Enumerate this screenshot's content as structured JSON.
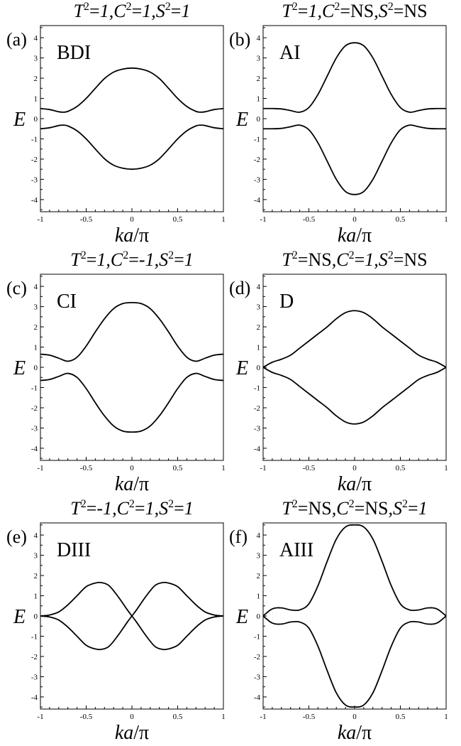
{
  "chart_data": [
    {
      "panel": "(a)",
      "class_label": "BDI",
      "title": {
        "T": "1",
        "C": "1",
        "S": "1"
      },
      "type": "line",
      "xlabel_italic": "ka",
      "xlabel_rest": "/π",
      "ylabel": "E",
      "xlim": [
        -1,
        1
      ],
      "ylim": [
        -4.6,
        4.6
      ],
      "xticks": [
        "-1",
        "-0.5",
        "0",
        "0.5",
        "1"
      ],
      "yticks": [
        "-4",
        "-3",
        "-2",
        "-1",
        "0",
        "1",
        "2",
        "3",
        "4"
      ],
      "x": [
        -1,
        -0.9,
        -0.8,
        -0.75,
        -0.7,
        -0.6,
        -0.5,
        -0.4,
        -0.3,
        -0.2,
        -0.1,
        0,
        0.1,
        0.2,
        0.3,
        0.4,
        0.5,
        0.6,
        0.7,
        0.75,
        0.8,
        0.9,
        1
      ],
      "series": [
        {
          "values": [
            0.5,
            0.45,
            0.34,
            0.32,
            0.36,
            0.6,
            1.0,
            1.5,
            1.98,
            2.3,
            2.45,
            2.5,
            2.45,
            2.3,
            1.98,
            1.5,
            1.0,
            0.6,
            0.36,
            0.32,
            0.34,
            0.45,
            0.5
          ]
        },
        {
          "values": [
            -0.5,
            -0.45,
            -0.34,
            -0.32,
            -0.36,
            -0.6,
            -1.0,
            -1.5,
            -1.98,
            -2.3,
            -2.45,
            -2.5,
            -2.45,
            -2.3,
            -1.98,
            -1.5,
            -1.0,
            -0.6,
            -0.36,
            -0.32,
            -0.34,
            -0.45,
            -0.5
          ]
        }
      ]
    },
    {
      "panel": "(b)",
      "class_label": "AI",
      "title": {
        "T": "1",
        "C": "NS",
        "S": "NS"
      },
      "type": "line",
      "xlabel_italic": "ka",
      "xlabel_rest": "/π",
      "ylabel": "E",
      "xlim": [
        -1,
        1
      ],
      "ylim": [
        -4.6,
        4.6
      ],
      "xticks": [
        "-1",
        "-0.5",
        "0",
        "0.5",
        "1"
      ],
      "yticks": [
        "-4",
        "-3",
        "-2",
        "-1",
        "0",
        "1",
        "2",
        "3",
        "4"
      ],
      "x": [
        -1,
        -0.9,
        -0.8,
        -0.7,
        -0.6,
        -0.5,
        -0.4,
        -0.3,
        -0.2,
        -0.1,
        0,
        0.1,
        0.2,
        0.3,
        0.4,
        0.5,
        0.6,
        0.7,
        0.8,
        0.9,
        1
      ],
      "series": [
        {
          "values": [
            0.5,
            0.5,
            0.48,
            0.4,
            0.32,
            0.55,
            1.2,
            2.1,
            3.0,
            3.6,
            3.75,
            3.6,
            3.0,
            2.1,
            1.2,
            0.55,
            0.32,
            0.4,
            0.48,
            0.5,
            0.5
          ]
        },
        {
          "values": [
            -0.5,
            -0.5,
            -0.48,
            -0.4,
            -0.32,
            -0.55,
            -1.2,
            -2.1,
            -3.0,
            -3.6,
            -3.75,
            -3.6,
            -3.0,
            -2.1,
            -1.2,
            -0.55,
            -0.32,
            -0.4,
            -0.48,
            -0.5,
            -0.5
          ]
        }
      ]
    },
    {
      "panel": "(c)",
      "class_label": "CI",
      "title": {
        "T": "1",
        "C": "-1",
        "S": "1"
      },
      "type": "line",
      "xlabel_italic": "ka",
      "xlabel_rest": "/π",
      "ylabel": "E",
      "xlim": [
        -1,
        1
      ],
      "ylim": [
        -4.6,
        4.6
      ],
      "xticks": [
        "-1",
        "-0.5",
        "0",
        "0.5",
        "1"
      ],
      "yticks": [
        "-4",
        "-3",
        "-2",
        "-1",
        "0",
        "1",
        "2",
        "3",
        "4"
      ],
      "x": [
        -1,
        -0.9,
        -0.8,
        -0.7,
        -0.6,
        -0.5,
        -0.4,
        -0.3,
        -0.2,
        -0.1,
        0,
        0.1,
        0.2,
        0.3,
        0.4,
        0.5,
        0.6,
        0.7,
        0.8,
        0.9,
        1
      ],
      "series": [
        {
          "values": [
            0.65,
            0.6,
            0.45,
            0.3,
            0.5,
            1.05,
            1.75,
            2.4,
            2.9,
            3.15,
            3.2,
            3.15,
            2.9,
            2.4,
            1.75,
            1.05,
            0.5,
            0.3,
            0.45,
            0.6,
            0.65
          ]
        },
        {
          "values": [
            -0.65,
            -0.6,
            -0.45,
            -0.3,
            -0.5,
            -1.05,
            -1.75,
            -2.4,
            -2.9,
            -3.15,
            -3.2,
            -3.15,
            -2.9,
            -2.4,
            -1.75,
            -1.05,
            -0.5,
            -0.3,
            -0.45,
            -0.6,
            -0.65
          ]
        }
      ]
    },
    {
      "panel": "(d)",
      "class_label": "D",
      "title": {
        "T": "NS",
        "C": "1",
        "S": "NS"
      },
      "type": "line",
      "xlabel_italic": "ka",
      "xlabel_rest": "/π",
      "ylabel": "E",
      "xlim": [
        -1,
        1
      ],
      "ylim": [
        -4.6,
        4.6
      ],
      "xticks": [
        "-1",
        "-0.5",
        "0",
        "0.5",
        "1"
      ],
      "yticks": [
        "-4",
        "-3",
        "-2",
        "-1",
        "0",
        "1",
        "2",
        "3",
        "4"
      ],
      "x": [
        -1,
        -0.9,
        -0.8,
        -0.7,
        -0.6,
        -0.5,
        -0.4,
        -0.3,
        -0.2,
        -0.1,
        0,
        0.1,
        0.2,
        0.3,
        0.4,
        0.5,
        0.6,
        0.7,
        0.8,
        0.9,
        1
      ],
      "series": [
        {
          "values": [
            0,
            0.25,
            0.4,
            0.6,
            0.95,
            1.3,
            1.65,
            2.0,
            2.4,
            2.7,
            2.8,
            2.7,
            2.4,
            2.0,
            1.65,
            1.3,
            0.95,
            0.6,
            0.4,
            0.25,
            0
          ]
        },
        {
          "values": [
            0,
            -0.25,
            -0.4,
            -0.6,
            -0.95,
            -1.3,
            -1.65,
            -2.0,
            -2.4,
            -2.7,
            -2.8,
            -2.7,
            -2.4,
            -2.0,
            -1.65,
            -1.3,
            -0.95,
            -0.6,
            -0.4,
            -0.25,
            0
          ]
        }
      ]
    },
    {
      "panel": "(e)",
      "class_label": "DIII",
      "title": {
        "T": "-1",
        "C": "1",
        "S": "1"
      },
      "type": "line",
      "xlabel_italic": "ka",
      "xlabel_rest": "/π",
      "ylabel": "E",
      "xlim": [
        -1,
        1
      ],
      "ylim": [
        -4.6,
        4.6
      ],
      "xticks": [
        "-1",
        "-0.5",
        "0",
        "0.5",
        "1"
      ],
      "yticks": [
        "-4",
        "-3",
        "-2",
        "-1",
        "0",
        "1",
        "2",
        "3",
        "4"
      ],
      "x": [
        -1,
        -0.9,
        -0.8,
        -0.7,
        -0.6,
        -0.5,
        -0.4,
        -0.333,
        -0.25,
        -0.15,
        -0.05,
        0,
        0.05,
        0.15,
        0.25,
        0.333,
        0.4,
        0.5,
        0.6,
        0.7,
        0.8,
        0.9,
        1
      ],
      "series": [
        {
          "values": [
            0,
            -0.05,
            -0.2,
            -0.55,
            -1.0,
            -1.45,
            -1.63,
            -1.65,
            -1.5,
            -0.95,
            -0.3,
            0,
            0.3,
            0.95,
            1.5,
            1.65,
            1.63,
            1.45,
            1.0,
            0.55,
            0.2,
            0.05,
            0
          ]
        },
        {
          "values": [
            0,
            0.05,
            0.2,
            0.55,
            1.0,
            1.45,
            1.63,
            1.65,
            1.5,
            0.95,
            0.3,
            0,
            -0.3,
            -0.95,
            -1.5,
            -1.65,
            -1.63,
            -1.45,
            -1.0,
            -0.55,
            -0.2,
            -0.05,
            0
          ]
        }
      ]
    },
    {
      "panel": "(f)",
      "class_label": "AIII",
      "title": {
        "T": "NS",
        "C": "NS",
        "S": "1"
      },
      "type": "line",
      "xlabel_italic": "ka",
      "xlabel_rest": "/π",
      "ylabel": "E",
      "xlim": [
        -1,
        1
      ],
      "ylim": [
        -4.6,
        4.6
      ],
      "xticks": [
        "-1",
        "-0.5",
        "0",
        "0.5",
        "1"
      ],
      "yticks": [
        "-4",
        "-3",
        "-2",
        "-1",
        "0",
        "1",
        "2",
        "3",
        "4"
      ],
      "x": [
        -1,
        -0.9,
        -0.8,
        -0.7,
        -0.6,
        -0.5,
        -0.4,
        -0.3,
        -0.2,
        -0.1,
        0,
        0.1,
        0.2,
        0.3,
        0.4,
        0.5,
        0.6,
        0.7,
        0.8,
        0.9,
        1
      ],
      "series": [
        {
          "values": [
            0,
            0.35,
            0.4,
            0.3,
            0.3,
            0.6,
            1.5,
            2.7,
            3.8,
            4.4,
            4.5,
            4.4,
            3.8,
            2.7,
            1.5,
            0.6,
            0.3,
            0.3,
            0.4,
            0.35,
            0
          ]
        },
        {
          "values": [
            0,
            -0.35,
            -0.4,
            -0.3,
            -0.3,
            -0.6,
            -1.5,
            -2.7,
            -3.8,
            -4.4,
            -4.5,
            -4.4,
            -3.8,
            -2.7,
            -1.5,
            -0.6,
            -0.3,
            -0.3,
            -0.4,
            -0.35,
            0
          ]
        }
      ]
    }
  ]
}
